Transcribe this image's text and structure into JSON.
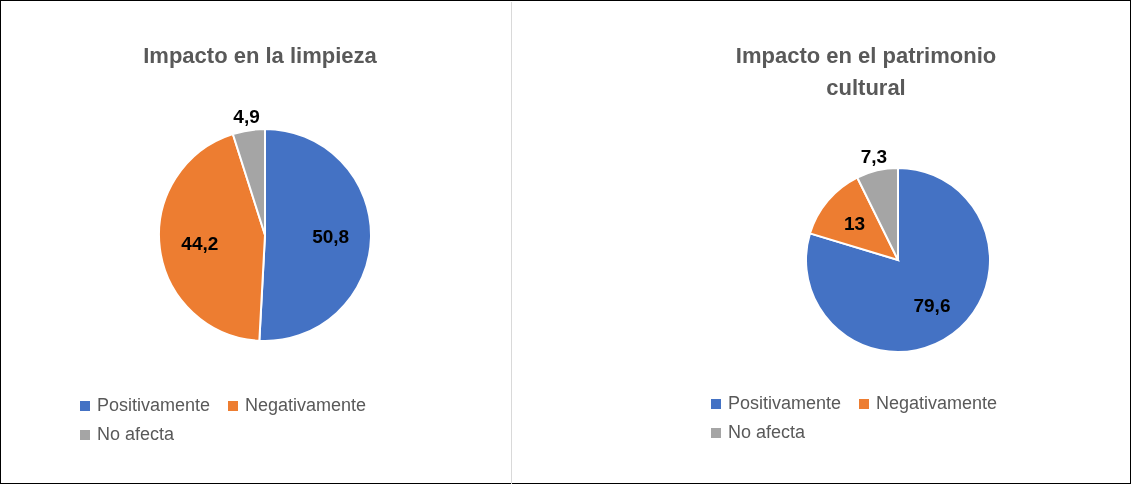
{
  "chart_data": [
    {
      "type": "pie",
      "title": "Impacto en la limpieza",
      "categories": [
        "Positivamente",
        "Negativamente",
        "No afecta"
      ],
      "values": [
        50.8,
        44.2,
        4.9
      ],
      "colors": [
        "#4472c4",
        "#ed7d31",
        "#a5a5a5"
      ],
      "value_labels": [
        "50,8",
        "44,2",
        "4,9"
      ],
      "legend": "bottom"
    },
    {
      "type": "pie",
      "title": "Impacto en el patrimonio cultural",
      "categories": [
        "Positivamente",
        "Negativamente",
        "No afecta"
      ],
      "values": [
        79.6,
        13,
        7.3
      ],
      "colors": [
        "#4472c4",
        "#ed7d31",
        "#a5a5a5"
      ],
      "value_labels": [
        "79,6",
        "13",
        "7,3"
      ],
      "legend": "bottom"
    }
  ]
}
